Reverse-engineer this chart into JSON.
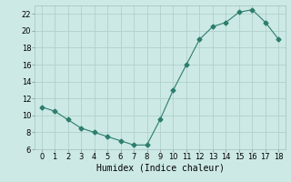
{
  "x": [
    0,
    1,
    2,
    3,
    4,
    5,
    6,
    7,
    8,
    9,
    10,
    11,
    12,
    13,
    14,
    15,
    16,
    17,
    18
  ],
  "y": [
    11,
    10.5,
    9.5,
    8.5,
    8.0,
    7.5,
    7.0,
    6.5,
    6.5,
    9.5,
    13.0,
    16.0,
    19.0,
    20.5,
    21.0,
    22.2,
    22.5,
    21.0,
    19.0
  ],
  "line_color": "#2d7d6e",
  "marker": "D",
  "marker_size": 2.5,
  "bg_color": "#cce9e5",
  "grid_color": "#b0d0cc",
  "xlabel": "Humidex (Indice chaleur)",
  "xlabel_fontsize": 7,
  "tick_fontsize": 6,
  "ylim": [
    6,
    23
  ],
  "xlim": [
    -0.5,
    18.5
  ],
  "yticks": [
    6,
    8,
    10,
    12,
    14,
    16,
    18,
    20,
    22
  ],
  "xticks": [
    0,
    1,
    2,
    3,
    4,
    5,
    6,
    7,
    8,
    9,
    10,
    11,
    12,
    13,
    14,
    15,
    16,
    17,
    18
  ]
}
